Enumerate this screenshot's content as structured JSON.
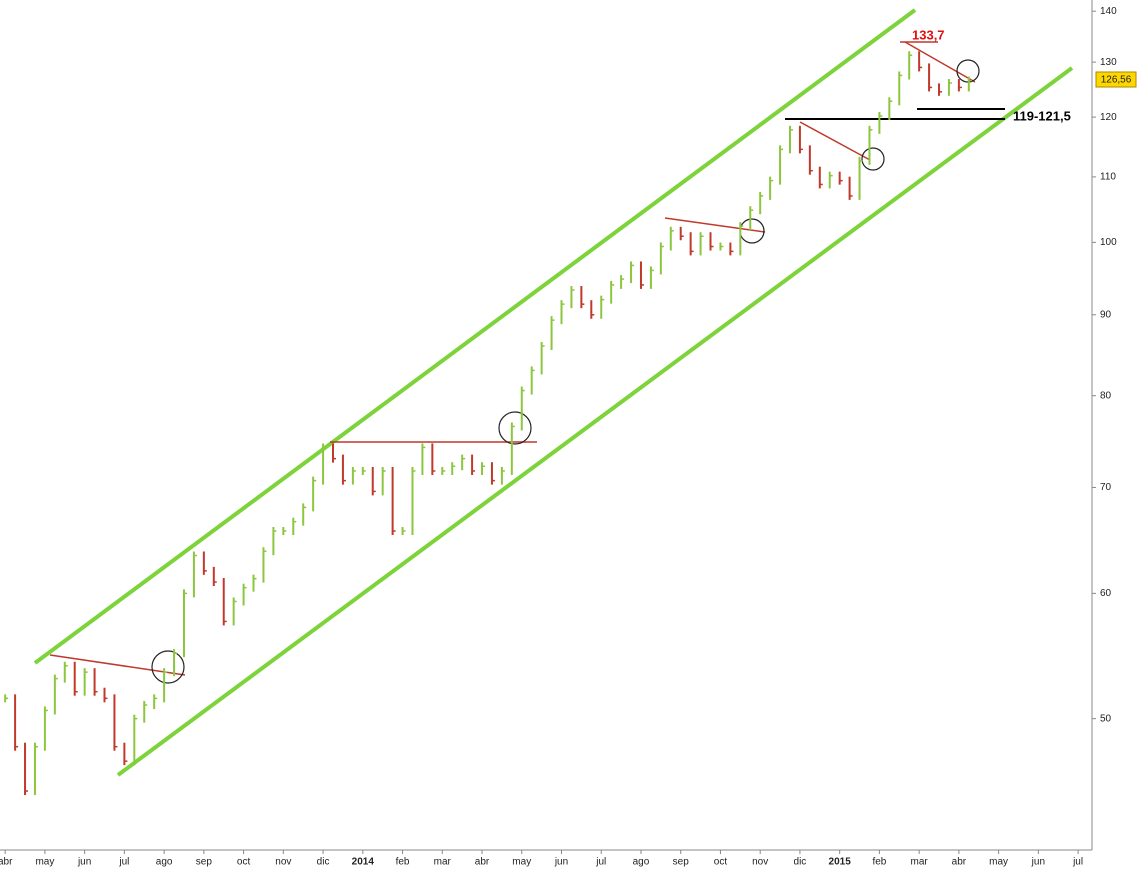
{
  "chart_data": {
    "type": "price-bars",
    "log_scale": true,
    "x": [
      0,
      0.25,
      0.5,
      0.75,
      1,
      1.25,
      1.5,
      1.75,
      2,
      2.25,
      2.5,
      2.75,
      3,
      3.25,
      3.5,
      3.75,
      4,
      4.25,
      4.5,
      4.75,
      5,
      5.25,
      5.5,
      5.75,
      6,
      6.25,
      6.5,
      6.75,
      7,
      7.25,
      7.5,
      7.75,
      8,
      8.25,
      8.5,
      8.75,
      9,
      9.25,
      9.5,
      9.75,
      10,
      10.25,
      10.5,
      10.75,
      11,
      11.25,
      11.5,
      11.75,
      12,
      12.25,
      12.5,
      12.75,
      13,
      13.25,
      13.5,
      13.75,
      14,
      14.25,
      14.5,
      14.75,
      15,
      15.25,
      15.5,
      15.75,
      16,
      16.25,
      16.5,
      16.75,
      17,
      17.25,
      17.5,
      17.75,
      18,
      18.25,
      18.5,
      18.75,
      19,
      19.25,
      19.5,
      19.75,
      20,
      20.25,
      20.5,
      20.75,
      21,
      21.25,
      21.5,
      21.75,
      22,
      22.25,
      22.5,
      22.75,
      23,
      23.25,
      23.5,
      23.75,
      24,
      24.25
    ],
    "values": [
      51.5,
      48,
      45,
      48,
      50.6,
      53,
      54,
      52,
      53.5,
      52,
      51.5,
      48,
      47,
      50,
      51,
      51.5,
      53.5,
      55,
      60,
      63.4,
      62,
      61,
      57.6,
      59.3,
      60.5,
      61.3,
      63.8,
      65.7,
      65.7,
      66.6,
      68,
      70.7,
      74.2,
      73,
      70.7,
      71.7,
      71.7,
      69.6,
      71.7,
      65.7,
      65.7,
      71.7,
      74.2,
      71.7,
      71.7,
      72.2,
      73,
      71.7,
      72.2,
      70.7,
      71.7,
      76.5,
      80.6,
      83,
      86,
      89.3,
      91.4,
      93.3,
      91.4,
      90,
      92,
      94,
      94.8,
      96.7,
      94,
      96,
      99.4,
      101.7,
      100.9,
      98.7,
      100.9,
      99.4,
      99.4,
      98.7,
      102.4,
      104.8,
      107,
      109.4,
      114.5,
      117.8,
      114.5,
      111,
      108.8,
      110.2,
      109.4,
      107,
      112.6,
      117.8,
      120.2,
      122.8,
      127.5,
      131.3,
      129,
      125.3,
      124.5,
      126.1,
      125.3,
      126.56
    ],
    "up_color": "#8cc63f",
    "down_color": "#c0392b",
    "channel_color": "#7dd33a",
    "xlim": [
      -0.13,
      27.35
    ],
    "ylim": [
      41.3,
      142.3
    ],
    "xticks": [
      {
        "value": 0,
        "label": "abr"
      },
      {
        "value": 1,
        "label": "may"
      },
      {
        "value": 2,
        "label": "jun"
      },
      {
        "value": 3,
        "label": "jul"
      },
      {
        "value": 4,
        "label": "ago"
      },
      {
        "value": 5,
        "label": "sep"
      },
      {
        "value": 6,
        "label": "oct"
      },
      {
        "value": 7,
        "label": "nov"
      },
      {
        "value": 8,
        "label": "dic"
      },
      {
        "value": 9,
        "label": "2014"
      },
      {
        "value": 10,
        "label": "feb"
      },
      {
        "value": 11,
        "label": "mar"
      },
      {
        "value": 12,
        "label": "abr"
      },
      {
        "value": 13,
        "label": "may"
      },
      {
        "value": 14,
        "label": "jun"
      },
      {
        "value": 15,
        "label": "jul"
      },
      {
        "value": 16,
        "label": "ago"
      },
      {
        "value": 17,
        "label": "sep"
      },
      {
        "value": 18,
        "label": "oct"
      },
      {
        "value": 19,
        "label": "nov"
      },
      {
        "value": 20,
        "label": "dic"
      },
      {
        "value": 21,
        "label": "2015"
      },
      {
        "value": 22,
        "label": "feb"
      },
      {
        "value": 23,
        "label": "mar"
      },
      {
        "value": 24,
        "label": "abr"
      },
      {
        "value": 25,
        "label": "may"
      },
      {
        "value": 26,
        "label": "jun"
      },
      {
        "value": 27,
        "label": "jul"
      }
    ],
    "yticks": [
      50,
      60,
      70,
      80,
      90,
      100,
      110,
      120,
      130,
      140
    ],
    "annotations": {
      "high": "133,7",
      "support": "119-121,5",
      "last": "126,56"
    }
  }
}
